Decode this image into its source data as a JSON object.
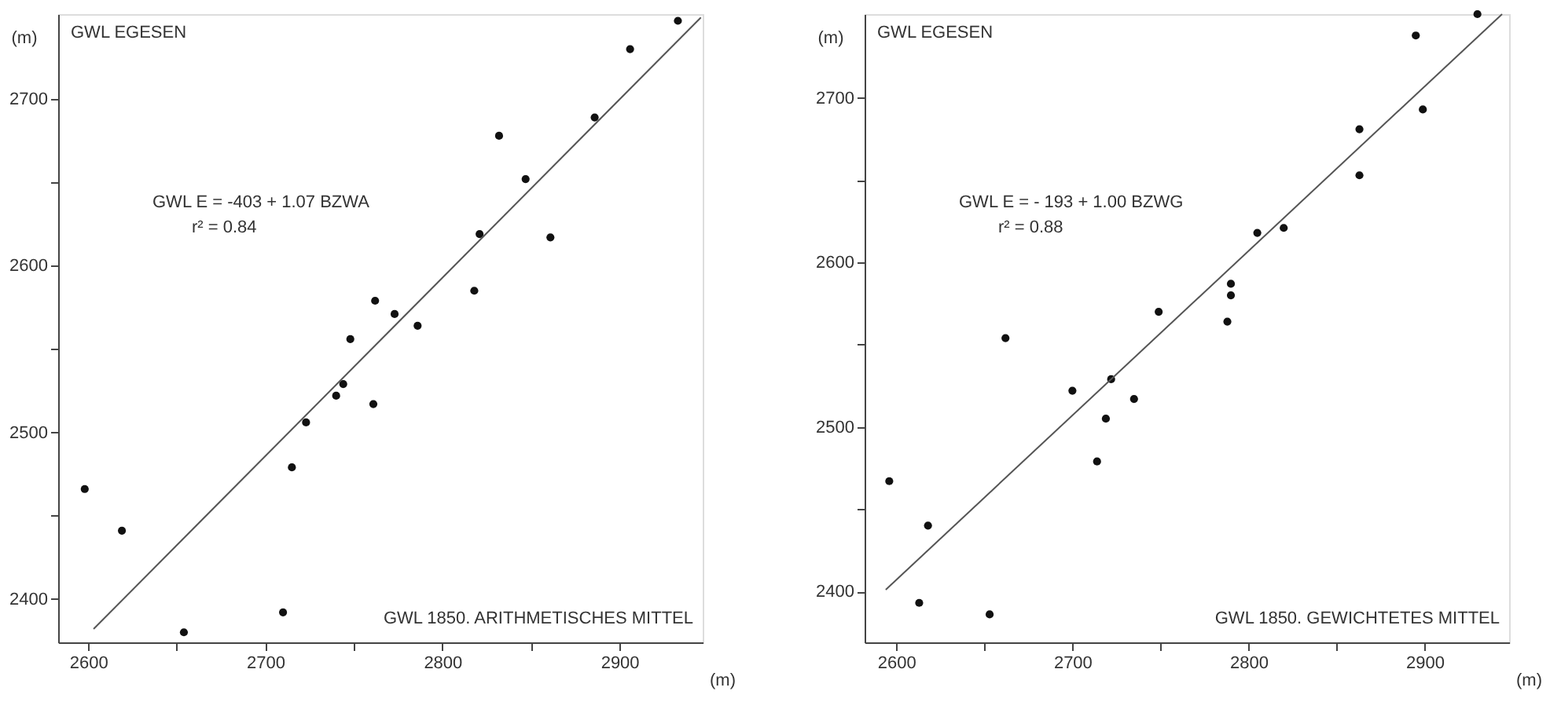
{
  "chart_data": [
    {
      "type": "scatter",
      "xlabel": "(m)",
      "ylabel": "(m)",
      "xlim": [
        2583,
        2947
      ],
      "ylim": [
        2374,
        2751
      ],
      "grid": false,
      "xticks": [
        2600,
        {
          "value": 2650,
          "label": null
        },
        2700,
        {
          "value": 2750,
          "label": null
        },
        2800,
        {
          "value": 2850,
          "label": null
        },
        2900
      ],
      "yticks": [
        2400,
        {
          "value": 2450,
          "label": null
        },
        2500,
        {
          "value": 2550,
          "label": null
        },
        2600,
        {
          "value": 2650,
          "label": null
        },
        2700
      ],
      "annotations": [
        "GWL EGESEN",
        "GWL E = -403 + 1.07 BZWA",
        "r² = 0.84",
        "GWL 1850. ARITHMETISCHES MITTEL"
      ],
      "series": [
        {
          "color": "#111111",
          "marker": "circle",
          "x": [
            2933,
            2906,
            2886,
            2832,
            2847,
            2821,
            2861,
            2818,
            2762,
            2773,
            2786,
            2748,
            2744,
            2740,
            2761,
            2723,
            2715,
            2598,
            2619,
            2710,
            2654
          ],
          "values": [
            2747,
            2730,
            2689,
            2678,
            2652,
            2619,
            2617,
            2585,
            2579,
            2571,
            2564,
            2556,
            2529,
            2522,
            2517,
            2506,
            2479,
            2466,
            2441,
            2392,
            2380
          ]
        },
        {
          "type": "line",
          "color": "#555555",
          "line_style": "solid",
          "marker": "none",
          "x": [
            2603,
            2946
          ],
          "values": [
            2382,
            2749
          ]
        }
      ]
    },
    {
      "type": "scatter",
      "xlabel": "(m)",
      "ylabel": "(m)",
      "xlim": [
        2582,
        2948
      ],
      "ylim": [
        2369,
        2751
      ],
      "grid": false,
      "xticks": [
        2600,
        {
          "value": 2650,
          "label": null
        },
        2700,
        {
          "value": 2750,
          "label": null
        },
        2800,
        {
          "value": 2850,
          "label": null
        },
        2900
      ],
      "yticks": [
        2400,
        {
          "value": 2450,
          "label": null
        },
        2500,
        {
          "value": 2550,
          "label": null
        },
        2600,
        {
          "value": 2650,
          "label": null
        },
        2700
      ],
      "annotations": [
        "GWL EGESEN",
        "GWL E = - 193 + 1.00 BZWG",
        "r² = 0.88",
        "GWL 1850. GEWICHTETES MITTEL"
      ],
      "series": [
        {
          "color": "#111111",
          "marker": "circle",
          "x": [
            2930,
            2895,
            2899,
            2863,
            2863,
            2805,
            2820,
            2790,
            2790,
            2749,
            2788,
            2662,
            2700,
            2722,
            2735,
            2719,
            2714,
            2596,
            2618,
            2613,
            2653
          ],
          "values": [
            2751,
            2738,
            2693,
            2681,
            2653,
            2618,
            2621,
            2587,
            2580,
            2570,
            2564,
            2554,
            2522,
            2529,
            2517,
            2505,
            2479,
            2467,
            2440,
            2393,
            2386
          ]
        },
        {
          "type": "line",
          "color": "#555555",
          "line_style": "solid",
          "marker": "none",
          "x": [
            2594,
            2944
          ],
          "values": [
            2401,
            2751
          ]
        }
      ]
    }
  ]
}
